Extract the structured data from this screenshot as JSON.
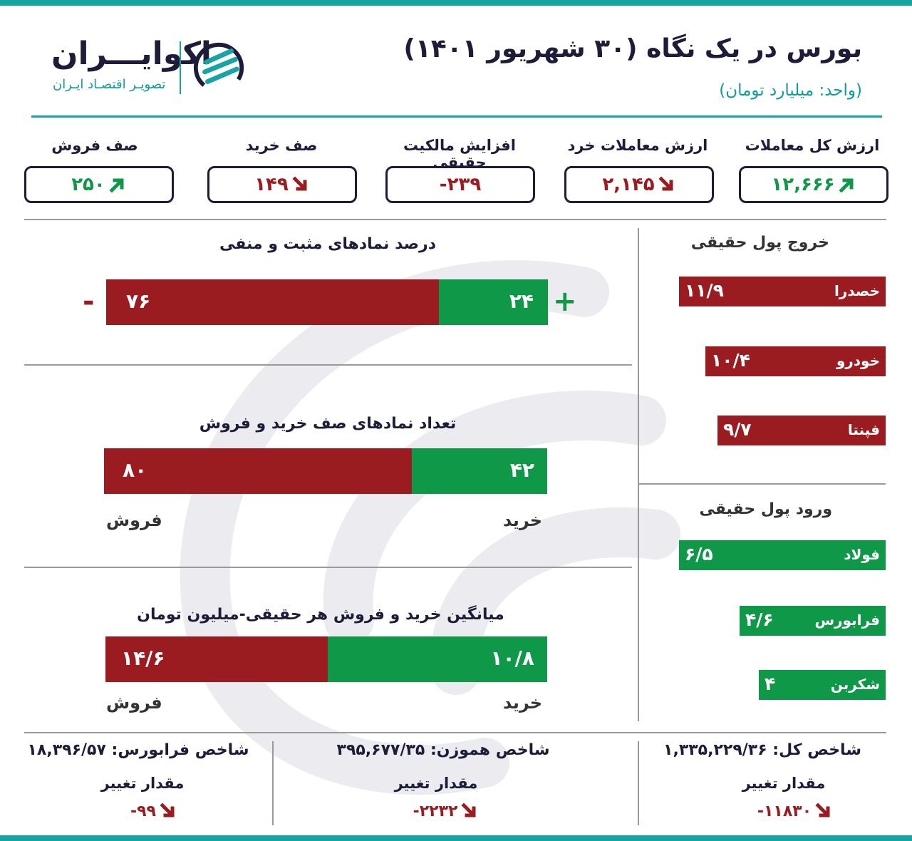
{
  "header": {
    "title": "بورس در یک نگاه (۳۰ شهریور ۱۴۰۱)",
    "unit": "(واحد: میلیارد تومان)",
    "brand_name": "اکوایـــران",
    "brand_tagline": "تصویـر اقتصـاد ایـران"
  },
  "kpis": [
    {
      "label": "ارزش کل معاملات",
      "value": "۱۲,۶۶۶",
      "trend": "up"
    },
    {
      "label": "ارزش معاملات خرد",
      "value": "۲,۱۴۵",
      "trend": "down"
    },
    {
      "label": "افزایش مالکیت حقیقی",
      "value": "-۲۳۹",
      "trend": "none"
    },
    {
      "label": "صف خرید",
      "value": "۱۴۹",
      "trend": "down"
    },
    {
      "label": "صف فروش",
      "value": "۲۵۰",
      "trend": "up"
    }
  ],
  "chart_data": [
    {
      "type": "bar",
      "title": "درصد نمادهای مثبت و منفی",
      "positive_sign": "+",
      "negative_sign": "-",
      "series": [
        {
          "name": "+",
          "value": 24,
          "label": "۲۴",
          "color": "#0f9848"
        },
        {
          "name": "-",
          "value": 76,
          "label": "۷۶",
          "color": "#9b1c20"
        }
      ]
    },
    {
      "type": "bar",
      "title": "تعداد نمادهای صف خرید و فروش",
      "series": [
        {
          "name": "خرید",
          "value": 42,
          "label": "۴۲",
          "color": "#0f9848"
        },
        {
          "name": "فروش",
          "value": 80,
          "label": "۸۰",
          "color": "#9b1c20"
        }
      ]
    },
    {
      "type": "bar",
      "title": "میانگین خرید و فروش هر حقیقی-میلیون تومان",
      "series": [
        {
          "name": "خرید",
          "value": 10.8,
          "label": "۱۰/۸",
          "color": "#0f9848"
        },
        {
          "name": "فروش",
          "value": 14.6,
          "label": "۱۴/۶",
          "color": "#9b1c20"
        }
      ]
    },
    {
      "type": "bar",
      "title": "خروج پول حقیقی",
      "categories": [
        "خصدرا",
        "خودرو",
        "فپنتا"
      ],
      "values": [
        11.9,
        10.4,
        9.7
      ],
      "value_labels": [
        "۱۱/۹",
        "۱۰/۴",
        "۹/۷"
      ],
      "color": "#9b1c20"
    },
    {
      "type": "bar",
      "title": "ورود پول حقیقی",
      "categories": [
        "فولاد",
        "فرابورس",
        "شکربن"
      ],
      "values": [
        6.5,
        4.6,
        4
      ],
      "value_labels": [
        "۶/۵",
        "۴/۶",
        "۴"
      ],
      "color": "#0f9848"
    }
  ],
  "indices": [
    {
      "title": "شاخص کل: ۱,۳۳۵,۲۲۹/۳۶",
      "change_label": "مقدار تغییر",
      "change": "-۱۱۸۳۰",
      "trend": "down"
    },
    {
      "title": "شاخص هموزن: ۳۹۵,۶۷۷/۳۵",
      "change_label": "مقدار تغییر",
      "change": "-۲۲۳۲",
      "trend": "down"
    },
    {
      "title": "شاخص فرابورس: ۱۸,۳۹۶/۵۷",
      "change_label": "مقدار تغییر",
      "change": "-۹۹",
      "trend": "down"
    }
  ],
  "colors": {
    "teal": "#19a4a4",
    "green": "#0f9848",
    "red": "#9b1c20",
    "navy": "#1d1d3a"
  }
}
